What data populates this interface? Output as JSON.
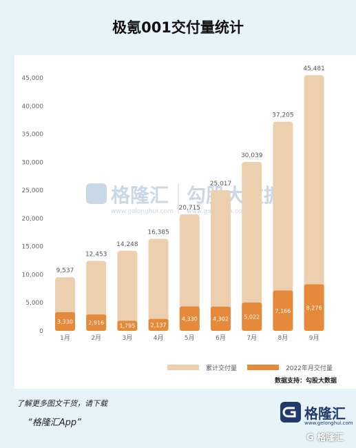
{
  "page": {
    "title": "极氪001交付量统计",
    "source": "数据支持：勾股大数据",
    "watermark_brand": "格隆汇",
    "watermark_url": "www.gelonghui.com",
    "watermark_partner": "勾股大数据",
    "watermark_partner_url": "www.gogudata.com",
    "footer_line1": "了解更多图文干货，请下载",
    "footer_line2": "“格隆汇App”",
    "brand_name": "格隆汇",
    "brand_url": "www.gelonghui.com",
    "corner_mark": "G 格隆汇"
  },
  "chart_data": {
    "type": "bar",
    "title": "极氪001交付量统计",
    "categories": [
      "1月",
      "2月",
      "3月",
      "4月",
      "5月",
      "6月",
      "7月",
      "8月",
      "9月"
    ],
    "series": [
      {
        "name": "累计交付量",
        "values": [
          9537,
          12453,
          14248,
          16385,
          20715,
          25017,
          30039,
          37205,
          45481
        ],
        "color": "#ebcfae"
      },
      {
        "name": "2022年月交付量",
        "values": [
          3330,
          2916,
          1795,
          2137,
          4330,
          4302,
          5022,
          7166,
          8276
        ],
        "color": "#e48a3a"
      }
    ],
    "value_labels": [
      "9,537",
      "12,453",
      "14,248",
      "16,385",
      "20,715",
      "25,017",
      "30,039",
      "37,205",
      "45,481"
    ],
    "inner_labels": [
      "3,330",
      "2,916",
      "1,795",
      "2,137",
      "4,330",
      "4,302",
      "5,022",
      "7,166",
      "8,276"
    ],
    "ylim": [
      0,
      45000
    ],
    "yticks": [
      0,
      5000,
      10000,
      15000,
      20000,
      25000,
      30000,
      35000,
      40000,
      45000
    ],
    "ytick_labels": [
      "0",
      "5,000",
      "10,000",
      "15,000",
      "20,000",
      "25,000",
      "30,000",
      "35,000",
      "40,000",
      "45,000"
    ],
    "legend_position": "bottom-right",
    "grid": false
  }
}
